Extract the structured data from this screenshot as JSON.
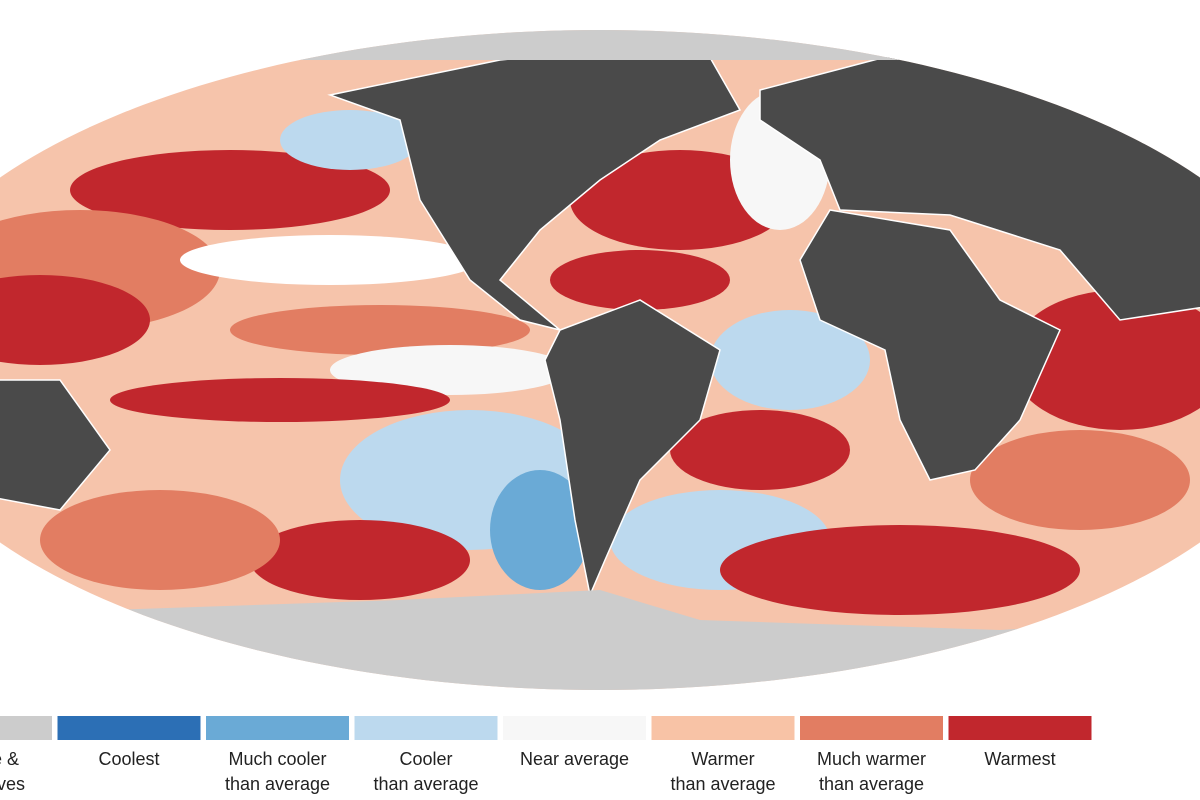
{
  "legend": {
    "items": [
      {
        "lines": [
          "Sea ice &",
          "ice shelves"
        ],
        "color": "#cccccc"
      },
      {
        "lines": [
          "Coolest"
        ],
        "color": "#2c6fb5"
      },
      {
        "lines": [
          "Much cooler",
          "than average"
        ],
        "color": "#6aaad6"
      },
      {
        "lines": [
          "Cooler",
          "than average"
        ],
        "color": "#bcd9ee"
      },
      {
        "lines": [
          "Near average"
        ],
        "color": "#f7f7f7"
      },
      {
        "lines": [
          "Warmer",
          "than average"
        ],
        "color": "#f8c3a6"
      },
      {
        "lines": [
          "Much warmer",
          "than average"
        ],
        "color": "#e27d62"
      },
      {
        "lines": [
          "Warmest"
        ],
        "color": "#c1272d"
      }
    ]
  }
}
